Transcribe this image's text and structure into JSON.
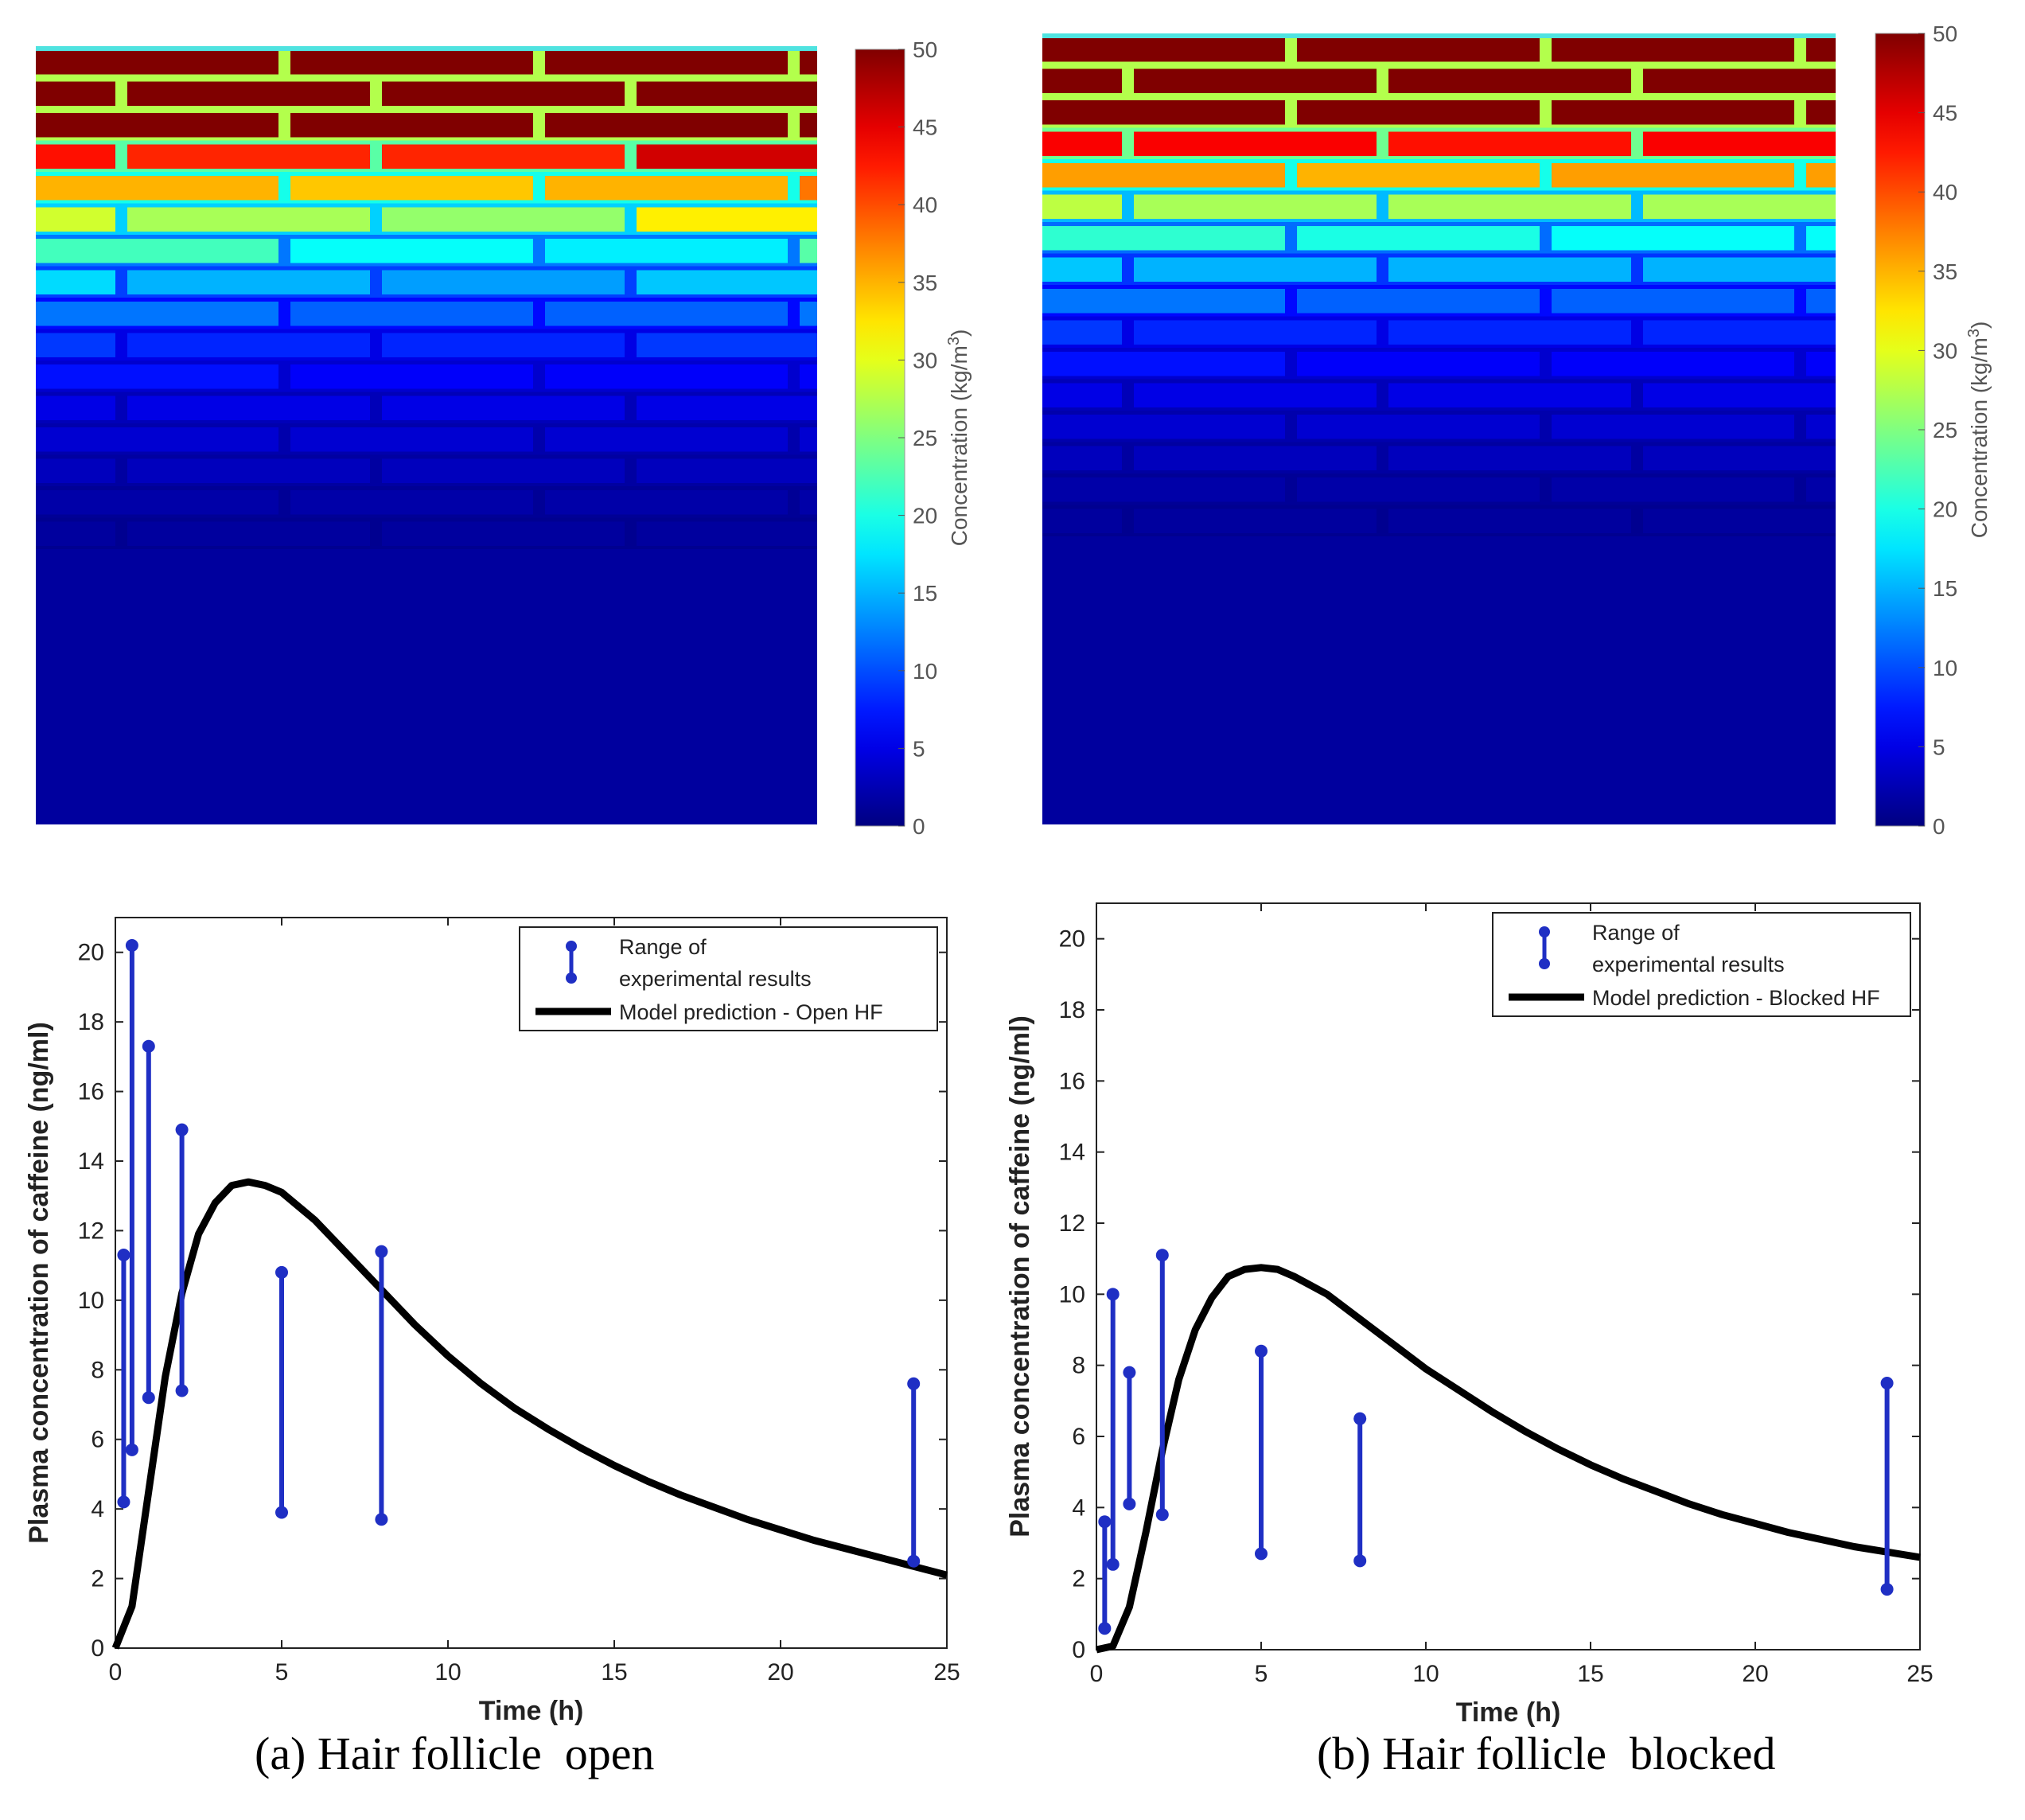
{
  "panels": [
    {
      "id": "a",
      "caption": "(a) Hair follicle  open",
      "heatmap": {
        "colorbar_label": "Concentration (kg/m",
        "colorbar_label_sup": "3",
        "colorbar_label_end": ")",
        "colorbar_ticks": [
          0,
          5,
          10,
          15,
          20,
          25,
          30,
          35,
          40,
          45,
          50
        ],
        "range": [
          0,
          50
        ],
        "row_values": [
          50,
          50,
          50,
          42,
          36,
          30,
          22,
          17,
          12,
          9,
          7,
          5,
          4,
          3,
          2,
          1.5
        ],
        "brick_values": [
          [
            50,
            50,
            50,
            50
          ],
          [
            50,
            50,
            50,
            50
          ],
          [
            50,
            50,
            50,
            50
          ],
          [
            43,
            42,
            42,
            46
          ],
          [
            35,
            34,
            35,
            38
          ],
          [
            29,
            27,
            26,
            32
          ],
          [
            22,
            19,
            18,
            23
          ],
          [
            17,
            15,
            14,
            16
          ],
          [
            12,
            11,
            11,
            12
          ],
          [
            9,
            8,
            8,
            9
          ],
          [
            7,
            6,
            6,
            6
          ],
          [
            5,
            5,
            5,
            5
          ],
          [
            4,
            4,
            4,
            4
          ],
          [
            3,
            3,
            3,
            3
          ],
          [
            2,
            2,
            2,
            2
          ],
          [
            1.5,
            1.5,
            1.5,
            1.5
          ]
        ]
      },
      "chart_data": {
        "type": "line",
        "xlabel": "Time (h)",
        "ylabel": "Plasma concentration of caffeine (ng/ml)",
        "xlim": [
          0,
          25
        ],
        "ylim": [
          0,
          21
        ],
        "xticks": [
          0,
          5,
          10,
          15,
          20,
          25
        ],
        "xtick_labels": [
          "0",
          "5",
          "10",
          "15",
          "20",
          "25"
        ],
        "yticks": [
          0,
          2,
          4,
          6,
          8,
          10,
          12,
          14,
          16,
          18,
          20
        ],
        "legend": {
          "position": "top-right",
          "range_label_1": "Range of",
          "range_label_2": "experimental results",
          "model_label": "Model prediction - Open HF"
        },
        "ranges": [
          {
            "t": 0.25,
            "low": 4.2,
            "high": 11.3
          },
          {
            "t": 0.5,
            "low": 5.7,
            "high": 20.2
          },
          {
            "t": 1,
            "low": 7.2,
            "high": 17.3
          },
          {
            "t": 2,
            "low": 7.4,
            "high": 14.9
          },
          {
            "t": 5,
            "low": 3.9,
            "high": 10.8
          },
          {
            "t": 8,
            "low": 3.7,
            "high": 11.4
          },
          {
            "t": 24,
            "low": 2.5,
            "high": 7.6
          }
        ],
        "model": {
          "x": [
            0,
            0.5,
            1,
            1.5,
            2,
            2.5,
            3,
            3.5,
            4,
            4.5,
            5,
            6,
            7,
            8,
            9,
            10,
            11,
            12,
            13,
            14,
            15,
            16,
            17,
            18,
            19,
            20,
            21,
            22,
            23,
            24,
            25
          ],
          "y": [
            0,
            1.2,
            4.5,
            7.8,
            10.2,
            11.9,
            12.8,
            13.3,
            13.4,
            13.3,
            13.1,
            12.3,
            11.3,
            10.3,
            9.3,
            8.4,
            7.6,
            6.9,
            6.3,
            5.75,
            5.25,
            4.8,
            4.4,
            4.05,
            3.7,
            3.4,
            3.1,
            2.85,
            2.6,
            2.35,
            2.1
          ]
        }
      }
    },
    {
      "id": "b",
      "caption": "(b) Hair follicle  blocked",
      "heatmap": {
        "colorbar_label": "Concentration (kg/m",
        "colorbar_label_sup": "3",
        "colorbar_label_end": ")",
        "colorbar_ticks": [
          0,
          5,
          10,
          15,
          20,
          25,
          30,
          35,
          40,
          45,
          50
        ],
        "range": [
          0,
          50
        ],
        "row_values": [
          50,
          50,
          50,
          44,
          36,
          28,
          21,
          16,
          12,
          9,
          7,
          5,
          4,
          3,
          2,
          1.5
        ],
        "brick_values": [
          [
            50,
            50,
            50,
            50
          ],
          [
            50,
            50,
            50,
            50
          ],
          [
            50,
            50,
            50,
            50
          ],
          [
            44,
            44,
            43,
            44
          ],
          [
            36,
            35,
            36,
            36
          ],
          [
            28,
            27,
            27,
            27
          ],
          [
            21,
            20,
            19,
            19
          ],
          [
            16,
            15,
            15,
            15
          ],
          [
            12,
            11,
            11,
            11
          ],
          [
            9,
            8,
            8,
            8
          ],
          [
            7,
            6,
            6,
            6
          ],
          [
            5,
            5,
            5,
            5
          ],
          [
            4,
            4,
            4,
            4
          ],
          [
            3,
            3,
            3,
            3
          ],
          [
            2,
            2,
            2,
            2
          ],
          [
            1.5,
            1.5,
            1.5,
            1.5
          ]
        ]
      },
      "chart_data": {
        "type": "line",
        "xlabel": "Time (h)",
        "ylabel": "Plasma concentration of caffeine (ng/ml)",
        "xlim": [
          0,
          25
        ],
        "ylim": [
          0,
          21
        ],
        "xticks": [
          0,
          5,
          10,
          15,
          20,
          25
        ],
        "xtick_labels": [
          "0",
          "5",
          "10",
          "15",
          "20",
          "25"
        ],
        "yticks": [
          0,
          2,
          4,
          6,
          8,
          10,
          12,
          14,
          16,
          18,
          20
        ],
        "legend": {
          "position": "top-right",
          "range_label_1": "Range of",
          "range_label_2": "experimental results",
          "model_label": "Model prediction - Blocked HF"
        },
        "ranges": [
          {
            "t": 0.25,
            "low": 0.6,
            "high": 3.6
          },
          {
            "t": 0.5,
            "low": 2.4,
            "high": 10.0
          },
          {
            "t": 1,
            "low": 4.1,
            "high": 7.8
          },
          {
            "t": 2,
            "low": 3.8,
            "high": 11.1
          },
          {
            "t": 5,
            "low": 2.7,
            "high": 8.4
          },
          {
            "t": 8,
            "low": 2.5,
            "high": 6.5
          },
          {
            "t": 24,
            "low": 1.7,
            "high": 7.5
          }
        ],
        "model": {
          "x": [
            0,
            0.5,
            1,
            1.5,
            2,
            2.5,
            3,
            3.5,
            4,
            4.5,
            5,
            5.5,
            6,
            7,
            8,
            9,
            10,
            11,
            12,
            13,
            14,
            15,
            16,
            17,
            18,
            19,
            20,
            21,
            22,
            23,
            24,
            25
          ],
          "y": [
            0,
            0.1,
            1.2,
            3.3,
            5.6,
            7.6,
            9.0,
            9.9,
            10.5,
            10.7,
            10.75,
            10.7,
            10.5,
            10.0,
            9.3,
            8.6,
            7.9,
            7.3,
            6.7,
            6.15,
            5.65,
            5.2,
            4.8,
            4.45,
            4.1,
            3.8,
            3.55,
            3.3,
            3.1,
            2.9,
            2.75,
            2.6
          ]
        }
      }
    }
  ]
}
